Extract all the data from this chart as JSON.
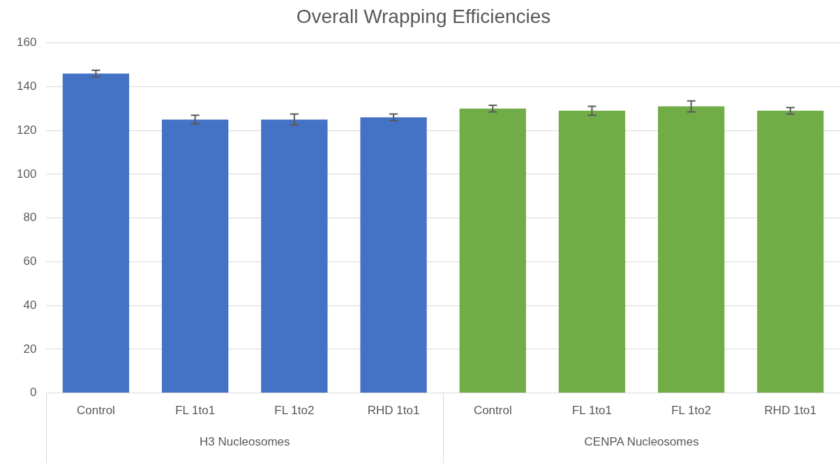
{
  "chart_data": {
    "type": "bar",
    "title": "Overall Wrapping Efficiencies",
    "categories": [
      "Control",
      "FL 1to1",
      "FL 1to2",
      "RHD 1to1",
      "Control",
      "FL 1to1",
      "FL 1to2",
      "RHD 1to1"
    ],
    "values": [
      146,
      125,
      125,
      126,
      130,
      129,
      131,
      129
    ],
    "errors": [
      1.5,
      2,
      2.5,
      1.5,
      1.5,
      2,
      2.5,
      1.5
    ],
    "colors": [
      "#4472c4",
      "#4472c4",
      "#4472c4",
      "#4472c4",
      "#70ad47",
      "#70ad47",
      "#70ad47",
      "#70ad47"
    ],
    "annotations": [
      "H3 Nucleosomes",
      "CENPA Nucleosomes"
    ],
    "ylim": [
      0,
      160
    ],
    "yticks": [
      0,
      20,
      40,
      60,
      80,
      100,
      120,
      140,
      160
    ],
    "grid": "y",
    "legend": false
  }
}
